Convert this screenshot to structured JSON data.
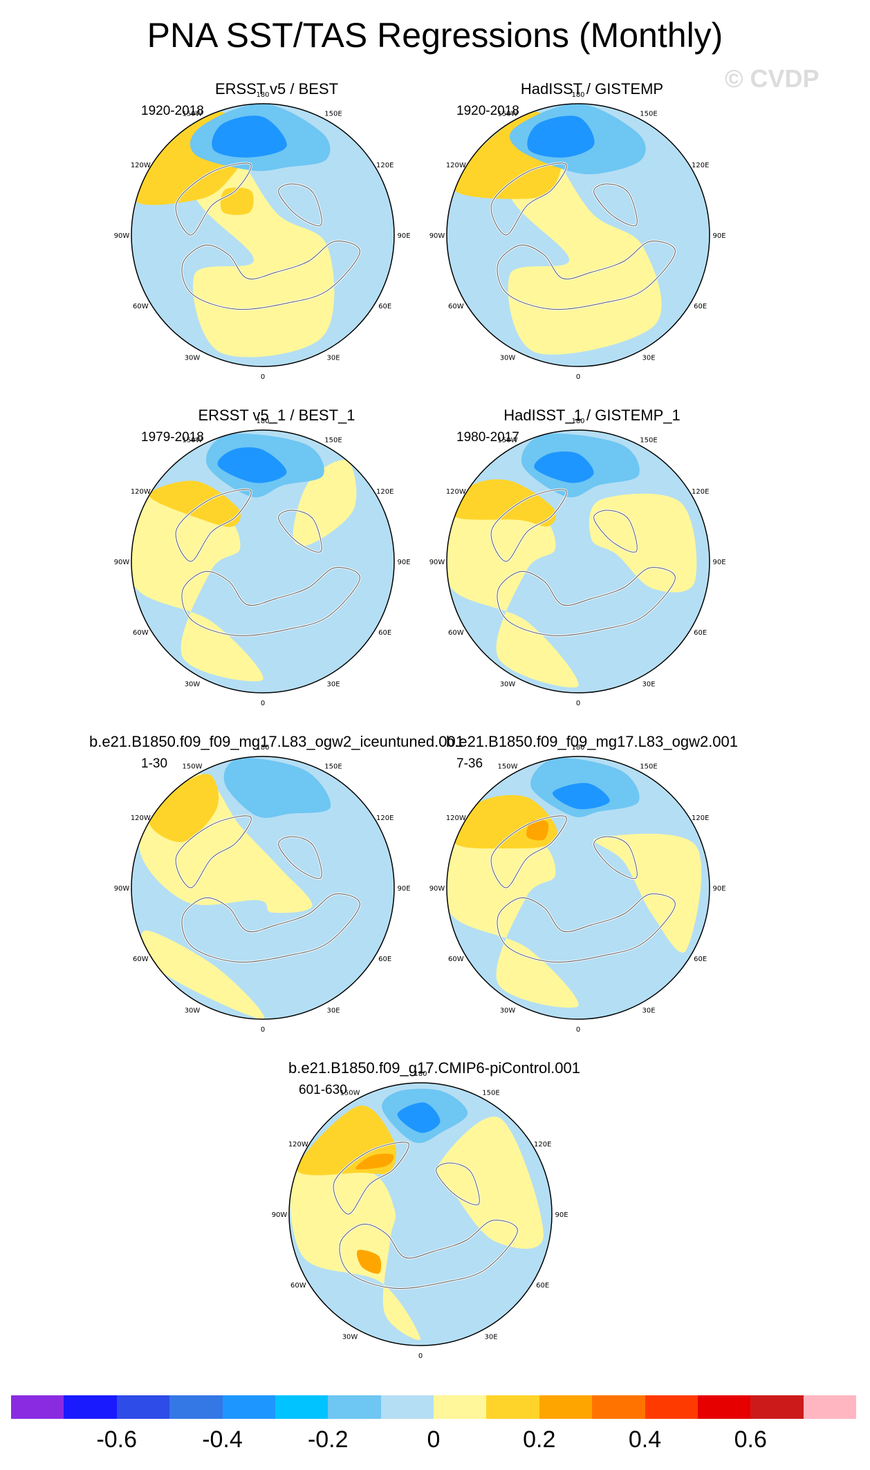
{
  "title": "PNA SST/TAS Regressions (Monthly)",
  "watermark": "© CVDP",
  "lon_labels": [
    "180",
    "150E",
    "120E",
    "90E",
    "60E",
    "30E",
    "0",
    "30W",
    "60W",
    "90W",
    "120W",
    "150W"
  ],
  "panels": [
    {
      "title": "ERSST v5 / BEST",
      "period": "1920-2018",
      "pattern": "a"
    },
    {
      "title": "HadISST / GISTEMP",
      "period": "1920-2018",
      "pattern": "b"
    },
    {
      "title": "ERSST v5_1 / BEST_1",
      "period": "1979-2018",
      "pattern": "c"
    },
    {
      "title": "HadISST_1 / GISTEMP_1",
      "period": "1980-2017",
      "pattern": "d"
    },
    {
      "title": "b.e21.B1850.f09_f09_mg17.L83_ogw2_iceuntuned.001",
      "period": "1-30",
      "pattern": "e"
    },
    {
      "title": "b.e21.B1850.f09_f09_mg17.L83_ogw2.001",
      "period": "7-36",
      "pattern": "f"
    },
    {
      "title": "b.e21.B1850.f09_g17.CMIP6-piControl.001",
      "period": "601-630",
      "pattern": "g"
    }
  ],
  "colorbar": {
    "colors": [
      "#8a2be2",
      "#1a1aff",
      "#2e4ce8",
      "#3478e6",
      "#1e96ff",
      "#00c3ff",
      "#6ec6f2",
      "#b4def4",
      "#fff79a",
      "#ffd42a",
      "#ffa500",
      "#ff7400",
      "#ff3a00",
      "#e60000",
      "#cc1a1a",
      "#ffb6c1"
    ],
    "labels": [
      "-0.6",
      "-0.4",
      "-0.2",
      "0",
      "0.2",
      "0.4",
      "0.6"
    ]
  }
}
